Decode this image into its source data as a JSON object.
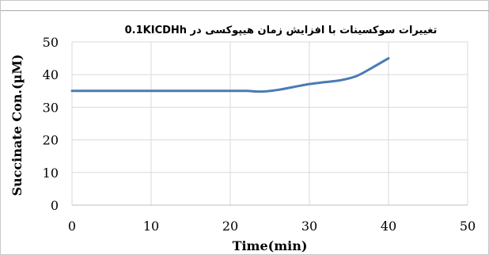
{
  "chart_data": {
    "type": "line",
    "title": "تغییرات سوکسینات با افزایش زمان هیپوکسی در 0.1KICDHh",
    "xlabel": "Time(min)",
    "ylabel": "Succinate Con.(µM)",
    "xlim": [
      0,
      50
    ],
    "ylim": [
      0,
      50
    ],
    "xticks": [
      0,
      10,
      20,
      30,
      40,
      50
    ],
    "yticks": [
      0,
      10,
      20,
      30,
      40,
      50
    ],
    "grid": true,
    "line_color": "#4a7ab5",
    "series": [
      {
        "x": [
          0,
          5,
          10,
          15,
          20,
          22,
          24,
          26,
          28,
          30,
          32,
          34,
          36,
          38,
          40
        ],
        "values": [
          35,
          35,
          35,
          35,
          35,
          35,
          34.8,
          35.3,
          36.2,
          37.1,
          37.7,
          38.3,
          39.6,
          42.2,
          45
        ]
      }
    ]
  }
}
